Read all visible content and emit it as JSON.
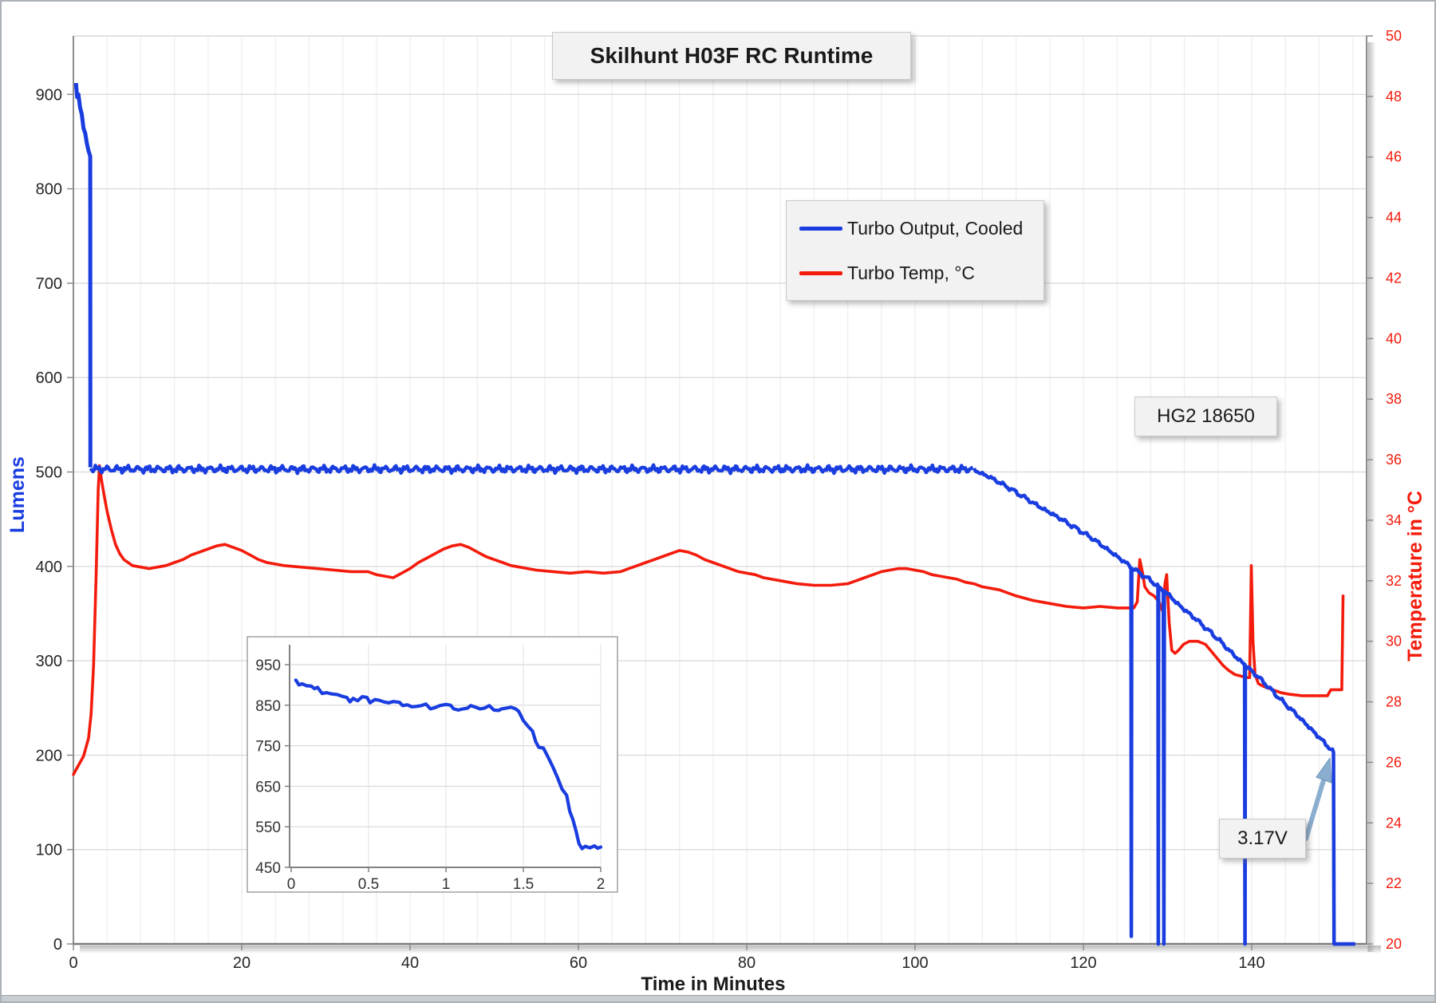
{
  "title": {
    "text": "Skilhunt H03F RC Runtime"
  },
  "legend": {
    "items": [
      {
        "label": "Turbo Output, Cooled",
        "color": "#1a3de0"
      },
      {
        "label": "Turbo Temp, °C",
        "color": "#f31b0c"
      }
    ]
  },
  "annotations": {
    "battery": "HG2 18650",
    "voltage": "3.17V"
  },
  "axes": {
    "x": {
      "title": "Time in Minutes",
      "ticks": [
        0,
        20,
        40,
        60,
        80,
        100,
        120,
        140
      ],
      "min": 0,
      "max": 153.5,
      "minor_step": 4,
      "label_color": "#262626"
    },
    "y_left": {
      "title": "Lumens",
      "ticks": [
        0,
        100,
        200,
        300,
        400,
        500,
        600,
        700,
        800,
        900
      ],
      "min": 0,
      "max": 962,
      "color": "#1a3de0",
      "label_color": "#262626"
    },
    "y_right": {
      "title": "Temperature in °C",
      "ticks": [
        20,
        22,
        24,
        26,
        28,
        30,
        32,
        34,
        36,
        38,
        40,
        42,
        44,
        46,
        48,
        50
      ],
      "min": 20,
      "max": 50,
      "color": "#f31b0c",
      "label_color": "#f31b0c"
    }
  },
  "chart_data": {
    "type": "line",
    "title": "Skilhunt H03F RC Runtime",
    "xlabel": "Time in Minutes",
    "ylabel_left": "Lumens",
    "ylabel_right": "Temperature in °C",
    "x_range": [
      0,
      153.5
    ],
    "y_left_range": [
      0,
      962
    ],
    "y_right_range": [
      20,
      50
    ],
    "grid": {
      "horizontal_step_lumens": 100,
      "vertical_step_minutes": 4
    },
    "series": [
      {
        "name": "Turbo Output, Cooled",
        "axis": "left",
        "color": "#1a3de0",
        "intro_points": [
          [
            0.3,
            912
          ],
          [
            0.45,
            897
          ],
          [
            0.6,
            900
          ],
          [
            0.8,
            886
          ],
          [
            1.0,
            879
          ],
          [
            1.2,
            864
          ],
          [
            1.4,
            859
          ],
          [
            1.6,
            848
          ],
          [
            1.8,
            840
          ],
          [
            1.95,
            836
          ],
          [
            2.0,
            834
          ],
          [
            2.02,
            505
          ]
        ],
        "plateau": {
          "t0": 2.02,
          "t1": 107,
          "level": 503,
          "noise": 4.5
        },
        "main_points": [
          [
            107,
            502
          ],
          [
            109,
            494
          ],
          [
            111,
            484
          ],
          [
            113,
            473
          ],
          [
            115,
            462
          ],
          [
            117,
            452
          ],
          [
            119,
            441
          ],
          [
            121,
            430
          ],
          [
            123,
            417
          ],
          [
            125,
            404
          ],
          [
            125.66,
            399
          ],
          [
            125.7,
            8
          ],
          [
            125.74,
            398
          ],
          [
            126.2,
            396
          ],
          [
            127,
            391
          ],
          [
            128,
            385
          ],
          [
            128.86,
            379
          ],
          [
            128.9,
            0
          ],
          [
            128.94,
            378
          ],
          [
            129.5,
            375
          ],
          [
            129.56,
            0
          ],
          [
            129.62,
            374
          ],
          [
            130,
            371
          ],
          [
            131,
            362
          ],
          [
            132,
            354
          ],
          [
            133,
            347
          ],
          [
            134,
            339
          ],
          [
            135,
            331
          ],
          [
            136,
            323
          ],
          [
            137,
            314
          ],
          [
            138,
            305
          ],
          [
            139.16,
            296
          ],
          [
            139.2,
            0
          ],
          [
            139.24,
            295
          ],
          [
            140,
            289
          ],
          [
            141,
            281
          ],
          [
            142,
            272
          ],
          [
            143,
            263
          ],
          [
            144,
            254
          ],
          [
            145,
            246
          ],
          [
            146,
            237
          ],
          [
            147,
            228
          ],
          [
            148,
            219
          ],
          [
            149,
            210
          ],
          [
            149.72,
            203
          ],
          [
            149.78,
            0
          ],
          [
            152.3,
            0
          ]
        ],
        "main_noise": {
          "amp": 2.6,
          "t_end": 149.6
        }
      },
      {
        "name": "Turbo Temp, °C",
        "axis": "right",
        "color": "#f31b0c",
        "points": [
          [
            0,
            25.6
          ],
          [
            0.6,
            25.9
          ],
          [
            1.2,
            26.2
          ],
          [
            1.8,
            26.8
          ],
          [
            2.1,
            27.6
          ],
          [
            2.4,
            29.2
          ],
          [
            2.7,
            32.2
          ],
          [
            2.95,
            35.0
          ],
          [
            3.1,
            35.8
          ],
          [
            3.3,
            35.4
          ],
          [
            3.6,
            34.9
          ],
          [
            4,
            34.3
          ],
          [
            4.5,
            33.7
          ],
          [
            5,
            33.2
          ],
          [
            5.5,
            32.9
          ],
          [
            6,
            32.7
          ],
          [
            6.5,
            32.6
          ],
          [
            7,
            32.5
          ],
          [
            8,
            32.45
          ],
          [
            9,
            32.4
          ],
          [
            10,
            32.45
          ],
          [
            11,
            32.5
          ],
          [
            12,
            32.6
          ],
          [
            13,
            32.7
          ],
          [
            14,
            32.85
          ],
          [
            15,
            32.95
          ],
          [
            16,
            33.05
          ],
          [
            17,
            33.15
          ],
          [
            18,
            33.2
          ],
          [
            19,
            33.1
          ],
          [
            20,
            33.0
          ],
          [
            21,
            32.85
          ],
          [
            22,
            32.7
          ],
          [
            23,
            32.6
          ],
          [
            24,
            32.55
          ],
          [
            25,
            32.5
          ],
          [
            27,
            32.45
          ],
          [
            29,
            32.4
          ],
          [
            31,
            32.35
          ],
          [
            33,
            32.3
          ],
          [
            35,
            32.3
          ],
          [
            36,
            32.2
          ],
          [
            37,
            32.15
          ],
          [
            38,
            32.1
          ],
          [
            39,
            32.25
          ],
          [
            40,
            32.4
          ],
          [
            41,
            32.6
          ],
          [
            42,
            32.75
          ],
          [
            43,
            32.9
          ],
          [
            44,
            33.05
          ],
          [
            45,
            33.15
          ],
          [
            46,
            33.2
          ],
          [
            47,
            33.1
          ],
          [
            48,
            32.95
          ],
          [
            49,
            32.8
          ],
          [
            50,
            32.7
          ],
          [
            51,
            32.6
          ],
          [
            52,
            32.5
          ],
          [
            53,
            32.45
          ],
          [
            54,
            32.4
          ],
          [
            55,
            32.35
          ],
          [
            57,
            32.3
          ],
          [
            59,
            32.25
          ],
          [
            61,
            32.3
          ],
          [
            63,
            32.25
          ],
          [
            65,
            32.3
          ],
          [
            66,
            32.4
          ],
          [
            67,
            32.5
          ],
          [
            68,
            32.6
          ],
          [
            69,
            32.7
          ],
          [
            70,
            32.8
          ],
          [
            71,
            32.9
          ],
          [
            72,
            33.0
          ],
          [
            73,
            32.95
          ],
          [
            74,
            32.85
          ],
          [
            75,
            32.7
          ],
          [
            76,
            32.6
          ],
          [
            77,
            32.5
          ],
          [
            78,
            32.4
          ],
          [
            79,
            32.3
          ],
          [
            80,
            32.25
          ],
          [
            81,
            32.2
          ],
          [
            82,
            32.1
          ],
          [
            83,
            32.05
          ],
          [
            84,
            32.0
          ],
          [
            85,
            31.95
          ],
          [
            86,
            31.9
          ],
          [
            88,
            31.85
          ],
          [
            90,
            31.85
          ],
          [
            92,
            31.9
          ],
          [
            93,
            32.0
          ],
          [
            94,
            32.1
          ],
          [
            95,
            32.2
          ],
          [
            96,
            32.3
          ],
          [
            97,
            32.35
          ],
          [
            98,
            32.4
          ],
          [
            99,
            32.4
          ],
          [
            100,
            32.35
          ],
          [
            101,
            32.3
          ],
          [
            102,
            32.2
          ],
          [
            103,
            32.15
          ],
          [
            104,
            32.1
          ],
          [
            105,
            32.05
          ],
          [
            106,
            31.95
          ],
          [
            107,
            31.9
          ],
          [
            108,
            31.8
          ],
          [
            110,
            31.7
          ],
          [
            112,
            31.5
          ],
          [
            114,
            31.35
          ],
          [
            116,
            31.25
          ],
          [
            118,
            31.15
          ],
          [
            120,
            31.1
          ],
          [
            122,
            31.15
          ],
          [
            124,
            31.1
          ],
          [
            126,
            31.1
          ],
          [
            126.4,
            31.3
          ],
          [
            126.7,
            32.7
          ],
          [
            127,
            32.3
          ],
          [
            127.3,
            31.8
          ],
          [
            127.8,
            31.6
          ],
          [
            128.4,
            31.5
          ],
          [
            129,
            31.3
          ],
          [
            129.4,
            31.0
          ],
          [
            129.7,
            31.9
          ],
          [
            129.9,
            32.2
          ],
          [
            130.2,
            30.6
          ],
          [
            130.5,
            29.7
          ],
          [
            130.9,
            29.6
          ],
          [
            131.3,
            29.7
          ],
          [
            131.9,
            29.9
          ],
          [
            132.6,
            30.0
          ],
          [
            133.6,
            30.0
          ],
          [
            134.5,
            29.9
          ],
          [
            135.4,
            29.6
          ],
          [
            136,
            29.4
          ],
          [
            136.6,
            29.2
          ],
          [
            137.2,
            29.05
          ],
          [
            138,
            28.9
          ],
          [
            138.7,
            28.85
          ],
          [
            139.4,
            28.8
          ],
          [
            139.75,
            28.8
          ],
          [
            139.95,
            32.5
          ],
          [
            140.15,
            30.0
          ],
          [
            140.4,
            28.9
          ],
          [
            140.8,
            28.6
          ],
          [
            141.5,
            28.5
          ],
          [
            142.5,
            28.4
          ],
          [
            143.5,
            28.3
          ],
          [
            144.5,
            28.25
          ],
          [
            146,
            28.2
          ],
          [
            147.5,
            28.2
          ],
          [
            149,
            28.2
          ],
          [
            149.4,
            28.4
          ],
          [
            150.7,
            28.4
          ],
          [
            150.85,
            31.5
          ]
        ]
      }
    ],
    "inset": {
      "description": "First 2 minutes of Turbo Output",
      "x_ticks": [
        0,
        0.5,
        1,
        1.5,
        2
      ],
      "y_ticks": [
        450,
        550,
        650,
        750,
        850,
        950
      ],
      "x_range": [
        0,
        2
      ],
      "y_range": [
        450,
        1000
      ],
      "series": {
        "name": "Turbo Output, Cooled (first 2 min)",
        "color": "#1a3de0",
        "points": [
          [
            0.03,
            912
          ],
          [
            0.05,
            900
          ],
          [
            0.07,
            903
          ],
          [
            0.1,
            898
          ],
          [
            0.13,
            897
          ],
          [
            0.15,
            891
          ],
          [
            0.17,
            894
          ],
          [
            0.2,
            879
          ],
          [
            0.23,
            881
          ],
          [
            0.26,
            878
          ],
          [
            0.3,
            876
          ],
          [
            0.33,
            872
          ],
          [
            0.36,
            869
          ],
          [
            0.38,
            858
          ],
          [
            0.4,
            867
          ],
          [
            0.43,
            861
          ],
          [
            0.46,
            871
          ],
          [
            0.49,
            869
          ],
          [
            0.51,
            856
          ],
          [
            0.54,
            864
          ],
          [
            0.57,
            862
          ],
          [
            0.6,
            858
          ],
          [
            0.63,
            856
          ],
          [
            0.66,
            859
          ],
          [
            0.7,
            857
          ],
          [
            0.72,
            849
          ],
          [
            0.75,
            851
          ],
          [
            0.78,
            846
          ],
          [
            0.81,
            847
          ],
          [
            0.84,
            849
          ],
          [
            0.87,
            853
          ],
          [
            0.9,
            841
          ],
          [
            0.93,
            844
          ],
          [
            0.96,
            849
          ],
          [
            1.0,
            852
          ],
          [
            1.03,
            850
          ],
          [
            1.05,
            841
          ],
          [
            1.08,
            838
          ],
          [
            1.11,
            841
          ],
          [
            1.14,
            843
          ],
          [
            1.16,
            849
          ],
          [
            1.19,
            845
          ],
          [
            1.22,
            841
          ],
          [
            1.25,
            843
          ],
          [
            1.28,
            849
          ],
          [
            1.31,
            838
          ],
          [
            1.34,
            837
          ],
          [
            1.36,
            841
          ],
          [
            1.39,
            843
          ],
          [
            1.42,
            845
          ],
          [
            1.45,
            841
          ],
          [
            1.47,
            835
          ],
          [
            1.5,
            812
          ],
          [
            1.53,
            798
          ],
          [
            1.56,
            786
          ],
          [
            1.58,
            760
          ],
          [
            1.6,
            746
          ],
          [
            1.63,
            744
          ],
          [
            1.66,
            722
          ],
          [
            1.69,
            698
          ],
          [
            1.72,
            672
          ],
          [
            1.75,
            643
          ],
          [
            1.78,
            628
          ],
          [
            1.8,
            588
          ],
          [
            1.82,
            568
          ],
          [
            1.84,
            540
          ],
          [
            1.86,
            508
          ],
          [
            1.88,
            496
          ],
          [
            1.9,
            502
          ],
          [
            1.93,
            498
          ],
          [
            1.96,
            503
          ],
          [
            1.98,
            497
          ],
          [
            2.0,
            500
          ]
        ]
      }
    }
  },
  "colors": {
    "grid_h": "#dcdcdc",
    "grid_v": "#f0f0f0",
    "axis": "#8c8c8c",
    "arrow_fill": "#8aaecf",
    "arrow_stroke": "#6b93b8",
    "box_bg": "#f2f2f2",
    "box_border": "#c9c9c9"
  }
}
